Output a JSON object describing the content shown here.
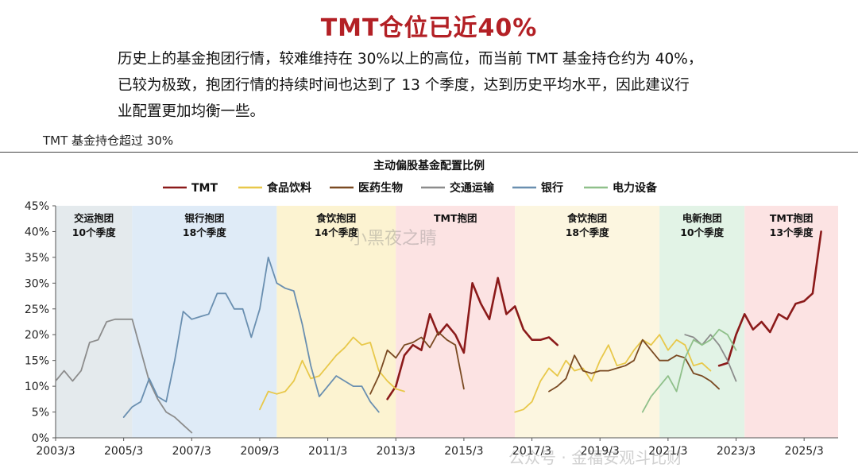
{
  "title": "TMT仓位已近40%",
  "intro": [
    "历史上的基金抱团行情，较难维持在 30%以上的高位，而当前 TMT 基金持仓约为 40%，",
    "已较为极致，抱团行情的持续时间也达到了 13 个季度，达到历史平均水平，因此建议行",
    "业配置更加均衡一些。"
  ],
  "figure_label": "TMT 基金持仓超过 30%",
  "watermark": "小黑夜之睛",
  "watermark2": "公众号 · 金福安观斗比财",
  "colors": {
    "TMT": "#8b1a1a",
    "食品饮料": "#e8c84a",
    "医药生物": "#7a4a22",
    "交通运输": "#8c8c8c",
    "银行": "#6a8fb0",
    "电力设备": "#8fc08a"
  },
  "chart_data": {
    "type": "line",
    "title": "主动偏股基金配置比例",
    "legend_position": "top",
    "ylim": [
      0,
      45
    ],
    "xlim": [
      "2003/3",
      "2026/3"
    ],
    "y_ticks": [
      "0%",
      "5%",
      "10%",
      "15%",
      "20%",
      "25%",
      "30%",
      "35%",
      "40%",
      "45%"
    ],
    "x_ticks": [
      "2003/3",
      "2005/3",
      "2007/3",
      "2009/3",
      "2011/3",
      "2013/3",
      "2015/3",
      "2017/3",
      "2019/3",
      "2021/3",
      "2023/3",
      "2025/3"
    ],
    "periods": [
      {
        "label1": "交运抱团",
        "label2": "10个季度",
        "start": "2003/3",
        "end": "2005/6",
        "color": "#dfe6ea"
      },
      {
        "label1": "银行抱团",
        "label2": "18个季度",
        "start": "2005/6",
        "end": "2009/9",
        "color": "#d9e7f6"
      },
      {
        "label1": "食饮抱团",
        "label2": "14个季度",
        "start": "2009/9",
        "end": "2013/3",
        "color": "#fbf1c9"
      },
      {
        "label1": "TMT抱团",
        "label2": "",
        "start": "2013/3",
        "end": "2016/9",
        "color": "#fbdede"
      },
      {
        "label1": "食饮抱团",
        "label2": "18个季度",
        "start": "2016/9",
        "end": "2020/12",
        "color": "#fcf5da"
      },
      {
        "label1": "电新抱团",
        "label2": "10个季度",
        "start": "2020/12",
        "end": "2023/6",
        "color": "#ddf1e2"
      },
      {
        "label1": "TMT抱团",
        "label2": "13个季度",
        "start": "2023/6",
        "end": "2026/3",
        "color": "#fbdede"
      }
    ],
    "series": [
      {
        "name": "TMT",
        "points": [
          [
            "2012/12",
            7.5
          ],
          [
            "2013/3",
            10
          ],
          [
            "2013/6",
            16
          ],
          [
            "2013/9",
            18
          ],
          [
            "2013/12",
            17
          ],
          [
            "2014/3",
            24
          ],
          [
            "2014/6",
            20
          ],
          [
            "2014/9",
            22
          ],
          [
            "2014/12",
            20
          ],
          [
            "2015/3",
            16.5
          ],
          [
            "2015/6",
            30
          ],
          [
            "2015/9",
            26
          ],
          [
            "2015/12",
            23
          ],
          [
            "2016/3",
            31
          ],
          [
            "2016/6",
            24
          ],
          [
            "2016/9",
            25.5
          ],
          [
            "2016/12",
            21
          ],
          [
            "2017/3",
            19
          ],
          [
            "2017/6",
            19
          ],
          [
            "2017/9",
            19.5
          ],
          [
            "2017/12",
            18
          ]
        ]
      },
      {
        "name": "TMT",
        "points": [
          [
            "2022/9",
            14
          ],
          [
            "2022/12",
            14.5
          ],
          [
            "2023/3",
            20
          ],
          [
            "2023/6",
            24
          ],
          [
            "2023/9",
            21
          ],
          [
            "2023/12",
            22.5
          ],
          [
            "2024/3",
            20.5
          ],
          [
            "2024/6",
            24
          ],
          [
            "2024/9",
            23
          ],
          [
            "2024/12",
            26
          ],
          [
            "2025/3",
            26.5
          ],
          [
            "2025/6",
            28
          ],
          [
            "2025/9",
            40
          ]
        ]
      },
      {
        "name": "食品饮料",
        "points": [
          [
            "2009/3",
            5.5
          ],
          [
            "2009/6",
            9
          ],
          [
            "2009/9",
            8.5
          ],
          [
            "2009/12",
            9
          ],
          [
            "2010/3",
            11
          ],
          [
            "2010/6",
            15
          ],
          [
            "2010/9",
            11.5
          ],
          [
            "2010/12",
            12
          ],
          [
            "2011/3",
            14
          ],
          [
            "2011/6",
            16
          ],
          [
            "2011/9",
            17.5
          ],
          [
            "2011/12",
            19.5
          ],
          [
            "2012/3",
            18
          ],
          [
            "2012/6",
            18.5
          ],
          [
            "2012/9",
            13
          ],
          [
            "2012/12",
            11
          ],
          [
            "2013/3",
            9.5
          ],
          [
            "2013/6",
            9
          ]
        ]
      },
      {
        "name": "食品饮料",
        "points": [
          [
            "2016/9",
            5
          ],
          [
            "2016/12",
            5.5
          ],
          [
            "2017/3",
            7
          ],
          [
            "2017/6",
            11
          ],
          [
            "2017/9",
            13.5
          ],
          [
            "2017/12",
            12
          ],
          [
            "2018/3",
            15
          ],
          [
            "2018/6",
            13
          ],
          [
            "2018/9",
            13.5
          ],
          [
            "2018/12",
            11
          ],
          [
            "2019/3",
            15
          ],
          [
            "2019/6",
            18
          ],
          [
            "2019/9",
            14
          ],
          [
            "2019/12",
            14.5
          ],
          [
            "2020/3",
            17
          ],
          [
            "2020/6",
            19
          ],
          [
            "2020/9",
            18
          ],
          [
            "2020/12",
            20
          ],
          [
            "2021/3",
            17
          ],
          [
            "2021/6",
            19
          ],
          [
            "2021/9",
            18
          ],
          [
            "2021/12",
            14
          ],
          [
            "2022/3",
            14.5
          ],
          [
            "2022/6",
            13
          ]
        ]
      },
      {
        "name": "医药生物",
        "points": [
          [
            "2012/6",
            8.5
          ],
          [
            "2012/9",
            12
          ],
          [
            "2012/12",
            17
          ],
          [
            "2013/3",
            15.5
          ],
          [
            "2013/6",
            18
          ],
          [
            "2013/9",
            18.5
          ],
          [
            "2013/12",
            19.5
          ],
          [
            "2014/3",
            17.5
          ],
          [
            "2014/6",
            20.5
          ],
          [
            "2014/9",
            19
          ],
          [
            "2014/12",
            18
          ],
          [
            "2015/3",
            9.5
          ]
        ]
      },
      {
        "name": "医药生物",
        "points": [
          [
            "2017/9",
            9
          ],
          [
            "2017/12",
            10
          ],
          [
            "2018/3",
            11.5
          ],
          [
            "2018/6",
            16
          ],
          [
            "2018/9",
            13
          ],
          [
            "2018/12",
            12.5
          ],
          [
            "2019/3",
            13
          ],
          [
            "2019/6",
            13
          ],
          [
            "2019/9",
            13.5
          ],
          [
            "2019/12",
            14
          ],
          [
            "2020/3",
            15
          ],
          [
            "2020/6",
            19
          ],
          [
            "2020/9",
            17
          ],
          [
            "2020/12",
            15
          ],
          [
            "2021/3",
            15
          ],
          [
            "2021/6",
            16
          ],
          [
            "2021/9",
            15.5
          ],
          [
            "2021/12",
            12.5
          ],
          [
            "2022/3",
            12
          ],
          [
            "2022/6",
            11
          ],
          [
            "2022/9",
            9.5
          ]
        ]
      },
      {
        "name": "交通运输",
        "points": [
          [
            "2003/3",
            11
          ],
          [
            "2003/6",
            13
          ],
          [
            "2003/9",
            11
          ],
          [
            "2003/12",
            13
          ],
          [
            "2004/3",
            18.5
          ],
          [
            "2004/6",
            19
          ],
          [
            "2004/9",
            22.5
          ],
          [
            "2004/12",
            23
          ],
          [
            "2005/3",
            23
          ],
          [
            "2005/6",
            23
          ],
          [
            "2005/9",
            17
          ],
          [
            "2005/12",
            11
          ],
          [
            "2006/3",
            7.5
          ],
          [
            "2006/6",
            5
          ],
          [
            "2006/9",
            4
          ],
          [
            "2006/12",
            2.5
          ],
          [
            "2007/3",
            1
          ]
        ]
      },
      {
        "name": "交通运输",
        "points": [
          [
            "2021/9",
            20
          ],
          [
            "2021/12",
            19.5
          ],
          [
            "2022/3",
            18
          ],
          [
            "2022/6",
            20
          ],
          [
            "2022/9",
            18
          ],
          [
            "2022/12",
            15
          ],
          [
            "2023/3",
            11
          ]
        ]
      },
      {
        "name": "银行",
        "points": [
          [
            "2005/3",
            4
          ],
          [
            "2005/6",
            6
          ],
          [
            "2005/9",
            7
          ],
          [
            "2005/12",
            11.5
          ],
          [
            "2006/3",
            8
          ],
          [
            "2006/6",
            7
          ],
          [
            "2006/9",
            15
          ],
          [
            "2006/12",
            24.5
          ],
          [
            "2007/3",
            23
          ],
          [
            "2007/6",
            23.5
          ],
          [
            "2007/9",
            24
          ],
          [
            "2007/12",
            28
          ],
          [
            "2008/3",
            28
          ],
          [
            "2008/6",
            25
          ],
          [
            "2008/9",
            25
          ],
          [
            "2008/12",
            19.5
          ],
          [
            "2009/3",
            25
          ],
          [
            "2009/6",
            35
          ],
          [
            "2009/9",
            30
          ],
          [
            "2009/12",
            29
          ],
          [
            "2010/3",
            28.5
          ],
          [
            "2010/6",
            22
          ],
          [
            "2010/9",
            14
          ],
          [
            "2010/12",
            8
          ],
          [
            "2011/3",
            10
          ],
          [
            "2011/6",
            12
          ],
          [
            "2011/9",
            11
          ],
          [
            "2011/12",
            10
          ],
          [
            "2012/3",
            10
          ],
          [
            "2012/6",
            7
          ],
          [
            "2012/9",
            5
          ]
        ]
      },
      {
        "name": "电力设备",
        "points": [
          [
            "2020/6",
            5
          ],
          [
            "2020/9",
            8
          ],
          [
            "2020/12",
            10
          ],
          [
            "2021/3",
            12
          ],
          [
            "2021/6",
            9
          ],
          [
            "2021/9",
            15.5
          ],
          [
            "2021/12",
            19
          ],
          [
            "2022/3",
            18
          ],
          [
            "2022/6",
            19
          ],
          [
            "2022/9",
            21
          ],
          [
            "2022/12",
            20
          ],
          [
            "2023/3",
            17
          ]
        ]
      }
    ],
    "legend": [
      "TMT",
      "食品饮料",
      "医药生物",
      "交通运输",
      "银行",
      "电力设备"
    ]
  }
}
